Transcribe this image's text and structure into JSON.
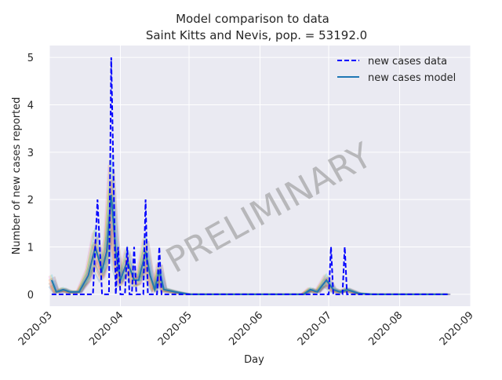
{
  "chart_data": {
    "type": "line",
    "title": "Model comparison to data",
    "subtitle": "Saint Kitts and Nevis, pop. = 53192.0",
    "xlabel": "Day",
    "ylabel": "Number of new cases reported",
    "xlim": [
      "2020-03-01",
      "2020-09-01"
    ],
    "ylim": [
      -0.25,
      5.25
    ],
    "x_ticks": [
      "2020-03",
      "2020-04",
      "2020-05",
      "2020-06",
      "2020-07",
      "2020-08",
      "2020-09"
    ],
    "y_ticks": [
      0,
      1,
      2,
      3,
      4,
      5
    ],
    "grid": true,
    "legend_position": "top-right",
    "annotation": "PRELIMINARY",
    "series": [
      {
        "name": "new cases data",
        "style": "dashed",
        "color": "#0000ff",
        "points": [
          [
            "2020-03-02",
            0
          ],
          [
            "2020-03-20",
            0
          ],
          [
            "2020-03-22",
            2
          ],
          [
            "2020-03-24",
            0
          ],
          [
            "2020-03-27",
            0
          ],
          [
            "2020-03-28",
            5
          ],
          [
            "2020-03-30",
            0
          ],
          [
            "2020-03-31",
            1
          ],
          [
            "2020-04-01",
            0
          ],
          [
            "2020-04-03",
            0
          ],
          [
            "2020-04-04",
            1
          ],
          [
            "2020-04-05",
            0
          ],
          [
            "2020-04-06",
            0
          ],
          [
            "2020-04-07",
            1
          ],
          [
            "2020-04-08",
            0
          ],
          [
            "2020-04-11",
            0
          ],
          [
            "2020-04-12",
            2
          ],
          [
            "2020-04-13",
            0
          ],
          [
            "2020-04-17",
            0
          ],
          [
            "2020-04-18",
            1
          ],
          [
            "2020-04-19",
            0
          ],
          [
            "2020-07-01",
            0
          ],
          [
            "2020-07-02",
            1
          ],
          [
            "2020-07-03",
            0
          ],
          [
            "2020-07-07",
            0
          ],
          [
            "2020-07-08",
            1
          ],
          [
            "2020-07-09",
            0
          ],
          [
            "2020-08-22",
            0
          ]
        ]
      },
      {
        "name": "new cases model",
        "style": "solid",
        "color": "#1f77b4",
        "points": [
          [
            "2020-03-02",
            0.3
          ],
          [
            "2020-03-04",
            0.05
          ],
          [
            "2020-03-07",
            0.1
          ],
          [
            "2020-03-10",
            0.05
          ],
          [
            "2020-03-14",
            0.05
          ],
          [
            "2020-03-18",
            0.4
          ],
          [
            "2020-03-21",
            1.0
          ],
          [
            "2020-03-24",
            0.5
          ],
          [
            "2020-03-26",
            0.9
          ],
          [
            "2020-03-28",
            2.1
          ],
          [
            "2020-03-30",
            0.9
          ],
          [
            "2020-04-01",
            0.3
          ],
          [
            "2020-04-04",
            0.7
          ],
          [
            "2020-04-07",
            0.3
          ],
          [
            "2020-04-09",
            0.3
          ],
          [
            "2020-04-12",
            0.9
          ],
          [
            "2020-04-14",
            0.4
          ],
          [
            "2020-04-16",
            0.1
          ],
          [
            "2020-04-18",
            0.5
          ],
          [
            "2020-04-20",
            0.1
          ],
          [
            "2020-04-25",
            0.05
          ],
          [
            "2020-05-01",
            0.0
          ],
          [
            "2020-06-20",
            0.0
          ],
          [
            "2020-06-23",
            0.1
          ],
          [
            "2020-06-26",
            0.05
          ],
          [
            "2020-06-30",
            0.3
          ],
          [
            "2020-07-03",
            0.1
          ],
          [
            "2020-07-06",
            0.05
          ],
          [
            "2020-07-09",
            0.1
          ],
          [
            "2020-07-14",
            0.02
          ],
          [
            "2020-07-20",
            0.0
          ],
          [
            "2020-08-22",
            0.0
          ]
        ]
      }
    ]
  }
}
